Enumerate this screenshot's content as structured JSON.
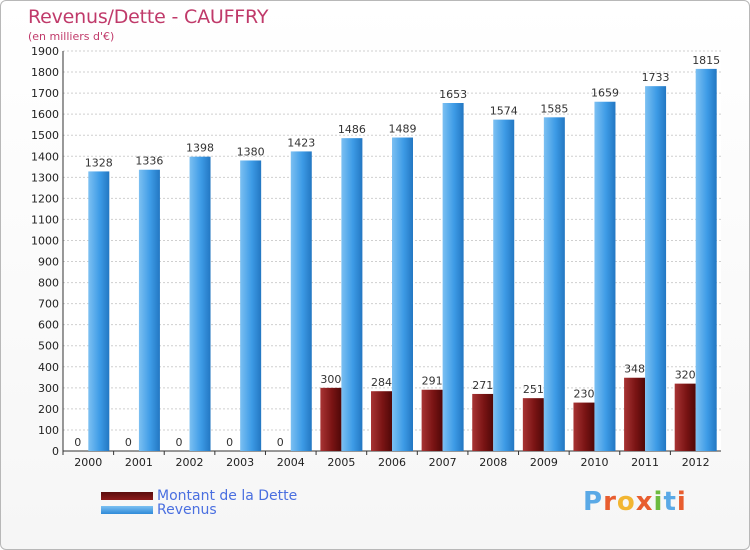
{
  "chart_data": {
    "type": "bar",
    "title": "Revenus/Dette - CAUFFRY",
    "subtitle": "(en milliers d'€)",
    "categories": [
      "2000",
      "2001",
      "2002",
      "2003",
      "2004",
      "2005",
      "2006",
      "2007",
      "2008",
      "2009",
      "2010",
      "2011",
      "2012"
    ],
    "ylim": [
      0,
      1900
    ],
    "yticks": [
      0,
      100,
      200,
      300,
      400,
      500,
      600,
      700,
      800,
      900,
      1000,
      1100,
      1200,
      1300,
      1400,
      1500,
      1600,
      1700,
      1800,
      1900
    ],
    "grid": true,
    "series": [
      {
        "name": "Montant de la Dette",
        "color": "#8b1a1a",
        "values": [
          0,
          0,
          0,
          0,
          0,
          300,
          284,
          291,
          271,
          251,
          230,
          348,
          320
        ]
      },
      {
        "name": "Revenus",
        "color": "#3d9be6",
        "values": [
          1328,
          1336,
          1398,
          1380,
          1423,
          1486,
          1489,
          1653,
          1574,
          1585,
          1659,
          1733,
          1815
        ]
      }
    ],
    "legend_position": "bottom-left"
  },
  "legend": {
    "debt_label": "Montant de la Dette",
    "revenue_label": "Revenus"
  },
  "logo": {
    "text": "Proxiti",
    "colors": [
      "#5aa9e6",
      "#e85d2f",
      "#f2b632",
      "#e85d2f",
      "#6dbb3f",
      "#5aa9e6",
      "#e85d2f"
    ]
  }
}
